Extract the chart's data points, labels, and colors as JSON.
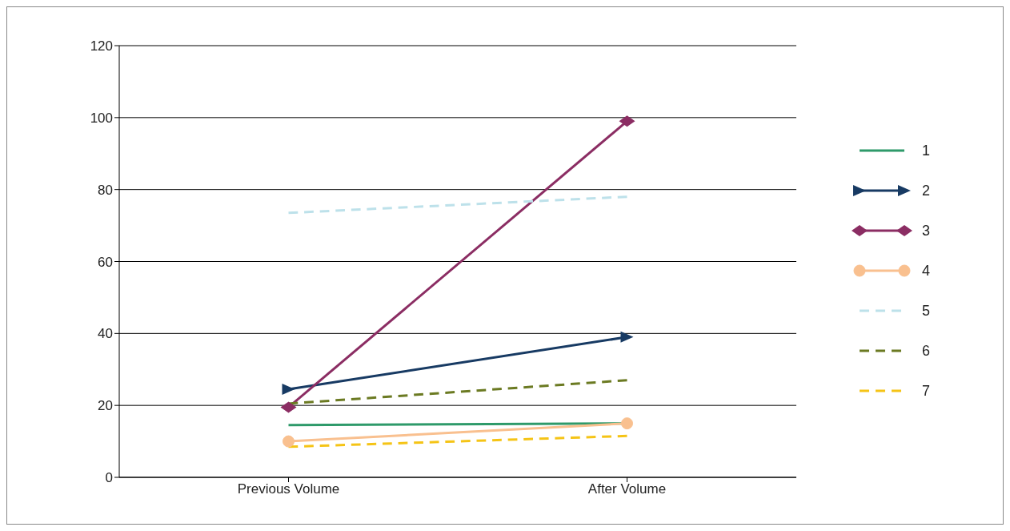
{
  "chart_data": {
    "type": "line",
    "categories": [
      "Previous Volume",
      "After Volume"
    ],
    "series": [
      {
        "name": "1",
        "color": "#2e9a6a",
        "values": [
          14.5,
          15
        ],
        "marker": "none",
        "line_style": "solid"
      },
      {
        "name": "2",
        "color": "#173a63",
        "values": [
          24.5,
          39
        ],
        "marker": "triangle",
        "line_style": "solid"
      },
      {
        "name": "3",
        "color": "#8b2d63",
        "values": [
          19.5,
          99
        ],
        "marker": "diamond",
        "line_style": "solid"
      },
      {
        "name": "4",
        "color": "#f9c08f",
        "values": [
          10,
          15
        ],
        "marker": "circle",
        "line_style": "solid"
      },
      {
        "name": "5",
        "color": "#bde1ea",
        "values": [
          73.5,
          78
        ],
        "marker": "none",
        "line_style": "dashed"
      },
      {
        "name": "6",
        "color": "#6b7a22",
        "values": [
          20.5,
          27
        ],
        "marker": "none",
        "line_style": "dashed"
      },
      {
        "name": "7",
        "color": "#f5c416",
        "values": [
          8.5,
          11.5
        ],
        "marker": "none",
        "line_style": "dashed"
      }
    ],
    "ylim": [
      0,
      120
    ],
    "yticks": [
      0,
      20,
      40,
      60,
      80,
      100,
      120
    ],
    "grid": "y",
    "legend": "right"
  }
}
